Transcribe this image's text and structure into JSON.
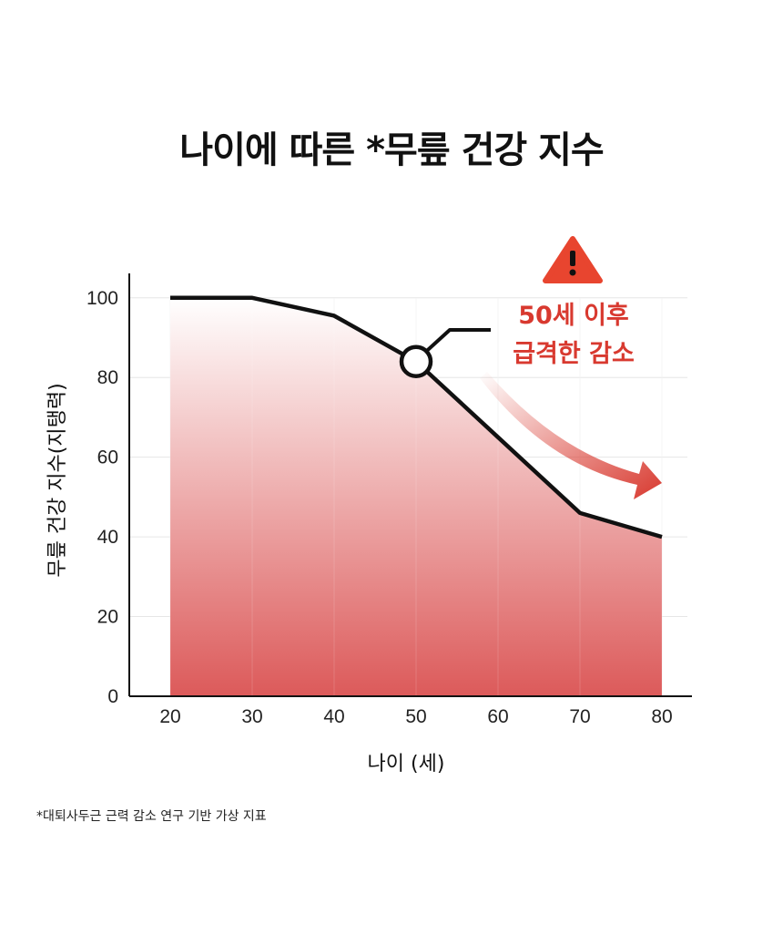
{
  "title": "나이에 따른 *무릎 건강 지수",
  "footnote": "*대퇴사두근 근력 감소 연구 기반 가상 지표",
  "callout": {
    "line1": "50세 이후",
    "line2": "급격한 감소",
    "icon": "warning-icon"
  },
  "colors": {
    "line": "#111111",
    "fill_top": "#ffffff",
    "fill_bottom": "#dc5a5a",
    "accent": "#d8392f",
    "warning": "#e8452f"
  },
  "chart_data": {
    "type": "area",
    "x": [
      20,
      30,
      40,
      50,
      60,
      70,
      80
    ],
    "values": [
      100,
      100,
      95.5,
      84,
      65,
      46,
      40
    ],
    "xlabel": "나이 (세)",
    "ylabel": "무릎 건강 지수(지탱력)",
    "xticks": [
      "20",
      "30",
      "40",
      "50",
      "60",
      "70",
      "80"
    ],
    "yticks": [
      "0",
      "20",
      "40",
      "60",
      "80",
      "100"
    ],
    "xlim": [
      15,
      83
    ],
    "ylim": [
      0,
      106
    ],
    "grid": true,
    "highlight_x": 50
  }
}
